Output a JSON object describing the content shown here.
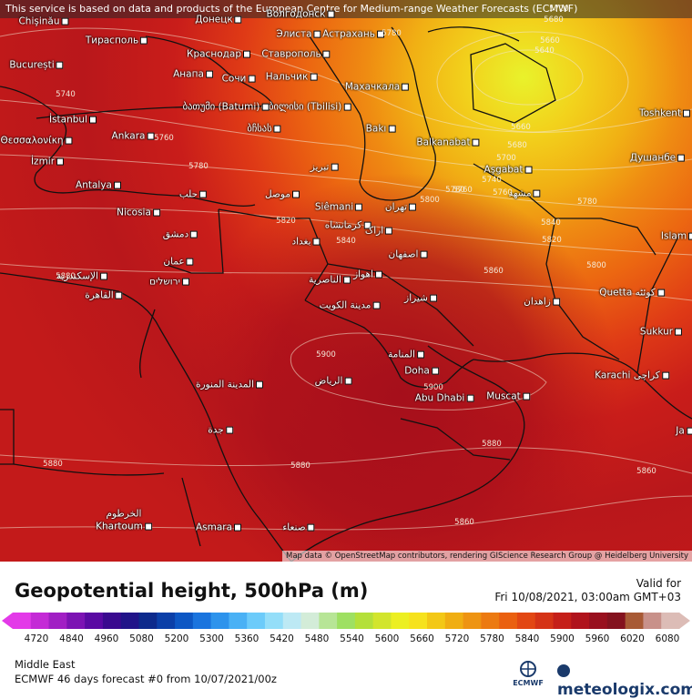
{
  "map": {
    "disclaimer": "This service is based on data and products of the European Centre for Medium-range Weather Forecasts (ECMWF)",
    "attribution": "Map data © OpenStreetMap contributors, rendering GIScience Research Group @ Heidelberg University",
    "colors": {
      "high_5640": "#e9f22b",
      "h5680": "#f2d21c",
      "h5720": "#f1b014",
      "h5760": "#ef8b12",
      "h5800": "#ec6711",
      "h5840": "#df3a16",
      "h5880": "#c91d1a",
      "h5900": "#a80f1b",
      "land_border": "#111111"
    },
    "cities": [
      {
        "name": "Chişinău"
      },
      {
        "name": "Тирасполь"
      },
      {
        "name": "București"
      },
      {
        "name": "Донецк"
      },
      {
        "name": "Волгодонск"
      },
      {
        "name": "Элиста"
      },
      {
        "name": "Астрахань"
      },
      {
        "name": "Краснодар"
      },
      {
        "name": "Ставрополь"
      },
      {
        "name": "Анапа"
      },
      {
        "name": "Сочи"
      },
      {
        "name": "Нальчик"
      },
      {
        "name": "Махачкала"
      },
      {
        "name": "თბილისი (Tbilisi)"
      },
      {
        "name": "ბათუმი (Batumi)"
      },
      {
        "name": "İstanbul"
      },
      {
        "name": "Θεσσαλονίκη"
      },
      {
        "name": "Ankara"
      },
      {
        "name": "İzmir"
      },
      {
        "name": "Antalya"
      },
      {
        "name": "Nicosia"
      },
      {
        "name": "Bakı"
      },
      {
        "name": "Balkanabat"
      },
      {
        "name": "Aşgabat"
      },
      {
        "name": "Toshkent"
      },
      {
        "name": "Душанбе"
      },
      {
        "name": "Siêmani"
      },
      {
        "name": "Islam"
      },
      {
        "name": "Quetta كوئٹه"
      },
      {
        "name": "Sukkur"
      },
      {
        "name": "Karachi كراچى"
      },
      {
        "name": "Doha"
      },
      {
        "name": "Abu Dhabi"
      },
      {
        "name": "Muscat"
      },
      {
        "name": "Khartoum"
      },
      {
        "name": "الخرطوم"
      },
      {
        "name": "Asmara"
      },
      {
        "name": "صنعاء"
      },
      {
        "name": "Ja"
      },
      {
        "name": "حلب"
      },
      {
        "name": "دمشق"
      },
      {
        "name": "عمان"
      },
      {
        "name": "ירושלים"
      },
      {
        "name": "الإسكندرية"
      },
      {
        "name": "القاهرة"
      },
      {
        "name": "بغداد"
      },
      {
        "name": "كرمانشاه"
      },
      {
        "name": "اراک"
      },
      {
        "name": "اصفهان"
      },
      {
        "name": "اهواز"
      },
      {
        "name": "الناصرية"
      },
      {
        "name": "مدينة الكويت"
      },
      {
        "name": "شیراز"
      },
      {
        "name": "زاهدان"
      },
      {
        "name": "المنامة"
      },
      {
        "name": "الرياض"
      },
      {
        "name": "المدينة المنورة"
      },
      {
        "name": "جدة"
      },
      {
        "name": "موصل"
      },
      {
        "name": "تبریز"
      },
      {
        "name": "تهران"
      },
      {
        "name": "مشهد"
      },
      {
        "name": "ბჩსას"
      }
    ],
    "contour_labels": [
      "5720",
      "5680",
      "5660",
      "5640",
      "5780",
      "5740",
      "5760",
      "5760",
      "5660",
      "5680",
      "5700",
      "5740",
      "5760",
      "5780",
      "5800",
      "5780",
      "5820",
      "5840",
      "5860",
      "5880",
      "5880",
      "5900",
      "5900",
      "5880",
      "5880",
      "5860",
      "5860",
      "5840",
      "5820",
      "5800",
      "5780"
    ]
  },
  "legend": {
    "title": "Geopotential height, 500hPa (m)",
    "valid_label": "Valid for",
    "valid_time": "Fri 10/08/2021, 03:00am GMT+03",
    "ticks": [
      "4720",
      "4840",
      "4960",
      "5080",
      "5200",
      "5300",
      "5360",
      "5420",
      "5480",
      "5540",
      "5600",
      "5660",
      "5720",
      "5780",
      "5840",
      "5900",
      "5960",
      "6020",
      "6080"
    ],
    "bar_colors": [
      "#e33ae8",
      "#c42ad6",
      "#a11fc4",
      "#7c13b3",
      "#5a0aa3",
      "#3a0a8f",
      "#211489",
      "#0d2a8c",
      "#0b3fa8",
      "#0d57c4",
      "#1a74de",
      "#2d93ec",
      "#4ab1f5",
      "#6ccbfa",
      "#94def9",
      "#bde9f4",
      "#d3ecd8",
      "#b7e596",
      "#9ee062",
      "#b4e03a",
      "#d2e52d",
      "#ecef22",
      "#f6e21d",
      "#f3c816",
      "#f0ae12",
      "#ee9412",
      "#ec7a11",
      "#ea6010",
      "#e24713",
      "#d53316",
      "#c51f19",
      "#b0131c",
      "#99101e",
      "#84121e",
      "#a85a35",
      "#c8918a",
      "#dcbcb6"
    ],
    "region": "Middle East",
    "forecast": "ECMWF 46 days forecast #0 from  10/07/2021/00z",
    "ecmwf_label": "ECMWF",
    "brand": "meteologix.com"
  }
}
